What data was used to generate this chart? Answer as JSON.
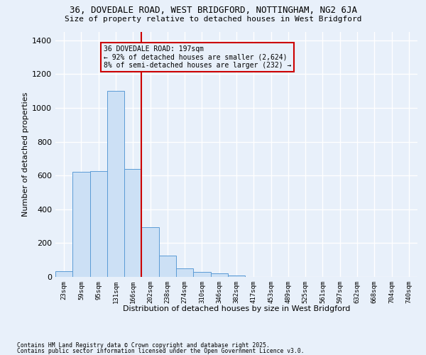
{
  "title_line1": "36, DOVEDALE ROAD, WEST BRIDGFORD, NOTTINGHAM, NG2 6JA",
  "title_line2": "Size of property relative to detached houses in West Bridgford",
  "xlabel": "Distribution of detached houses by size in West Bridgford",
  "ylabel": "Number of detached properties",
  "bar_color": "#cce0f5",
  "bar_edge_color": "#5b9bd5",
  "background_color": "#e8f0fa",
  "grid_color": "#ffffff",
  "categories": [
    "23sqm",
    "59sqm",
    "95sqm",
    "131sqm",
    "166sqm",
    "202sqm",
    "238sqm",
    "274sqm",
    "310sqm",
    "346sqm",
    "382sqm",
    "417sqm",
    "453sqm",
    "489sqm",
    "525sqm",
    "561sqm",
    "597sqm",
    "632sqm",
    "668sqm",
    "704sqm",
    "740sqm"
  ],
  "values": [
    35,
    620,
    625,
    1100,
    640,
    295,
    125,
    50,
    30,
    20,
    10,
    0,
    0,
    0,
    0,
    0,
    0,
    0,
    0,
    0,
    0
  ],
  "ylim": [
    0,
    1450
  ],
  "yticks": [
    0,
    200,
    400,
    600,
    800,
    1000,
    1200,
    1400
  ],
  "vline_idx": 5,
  "vline_color": "#cc0000",
  "annotation_title": "36 DOVEDALE ROAD: 197sqm",
  "annotation_line1": "← 92% of detached houses are smaller (2,624)",
  "annotation_line2": "8% of semi-detached houses are larger (232) →",
  "annotation_box_edgecolor": "#cc0000",
  "footnote_line1": "Contains HM Land Registry data © Crown copyright and database right 2025.",
  "footnote_line2": "Contains public sector information licensed under the Open Government Licence v3.0."
}
